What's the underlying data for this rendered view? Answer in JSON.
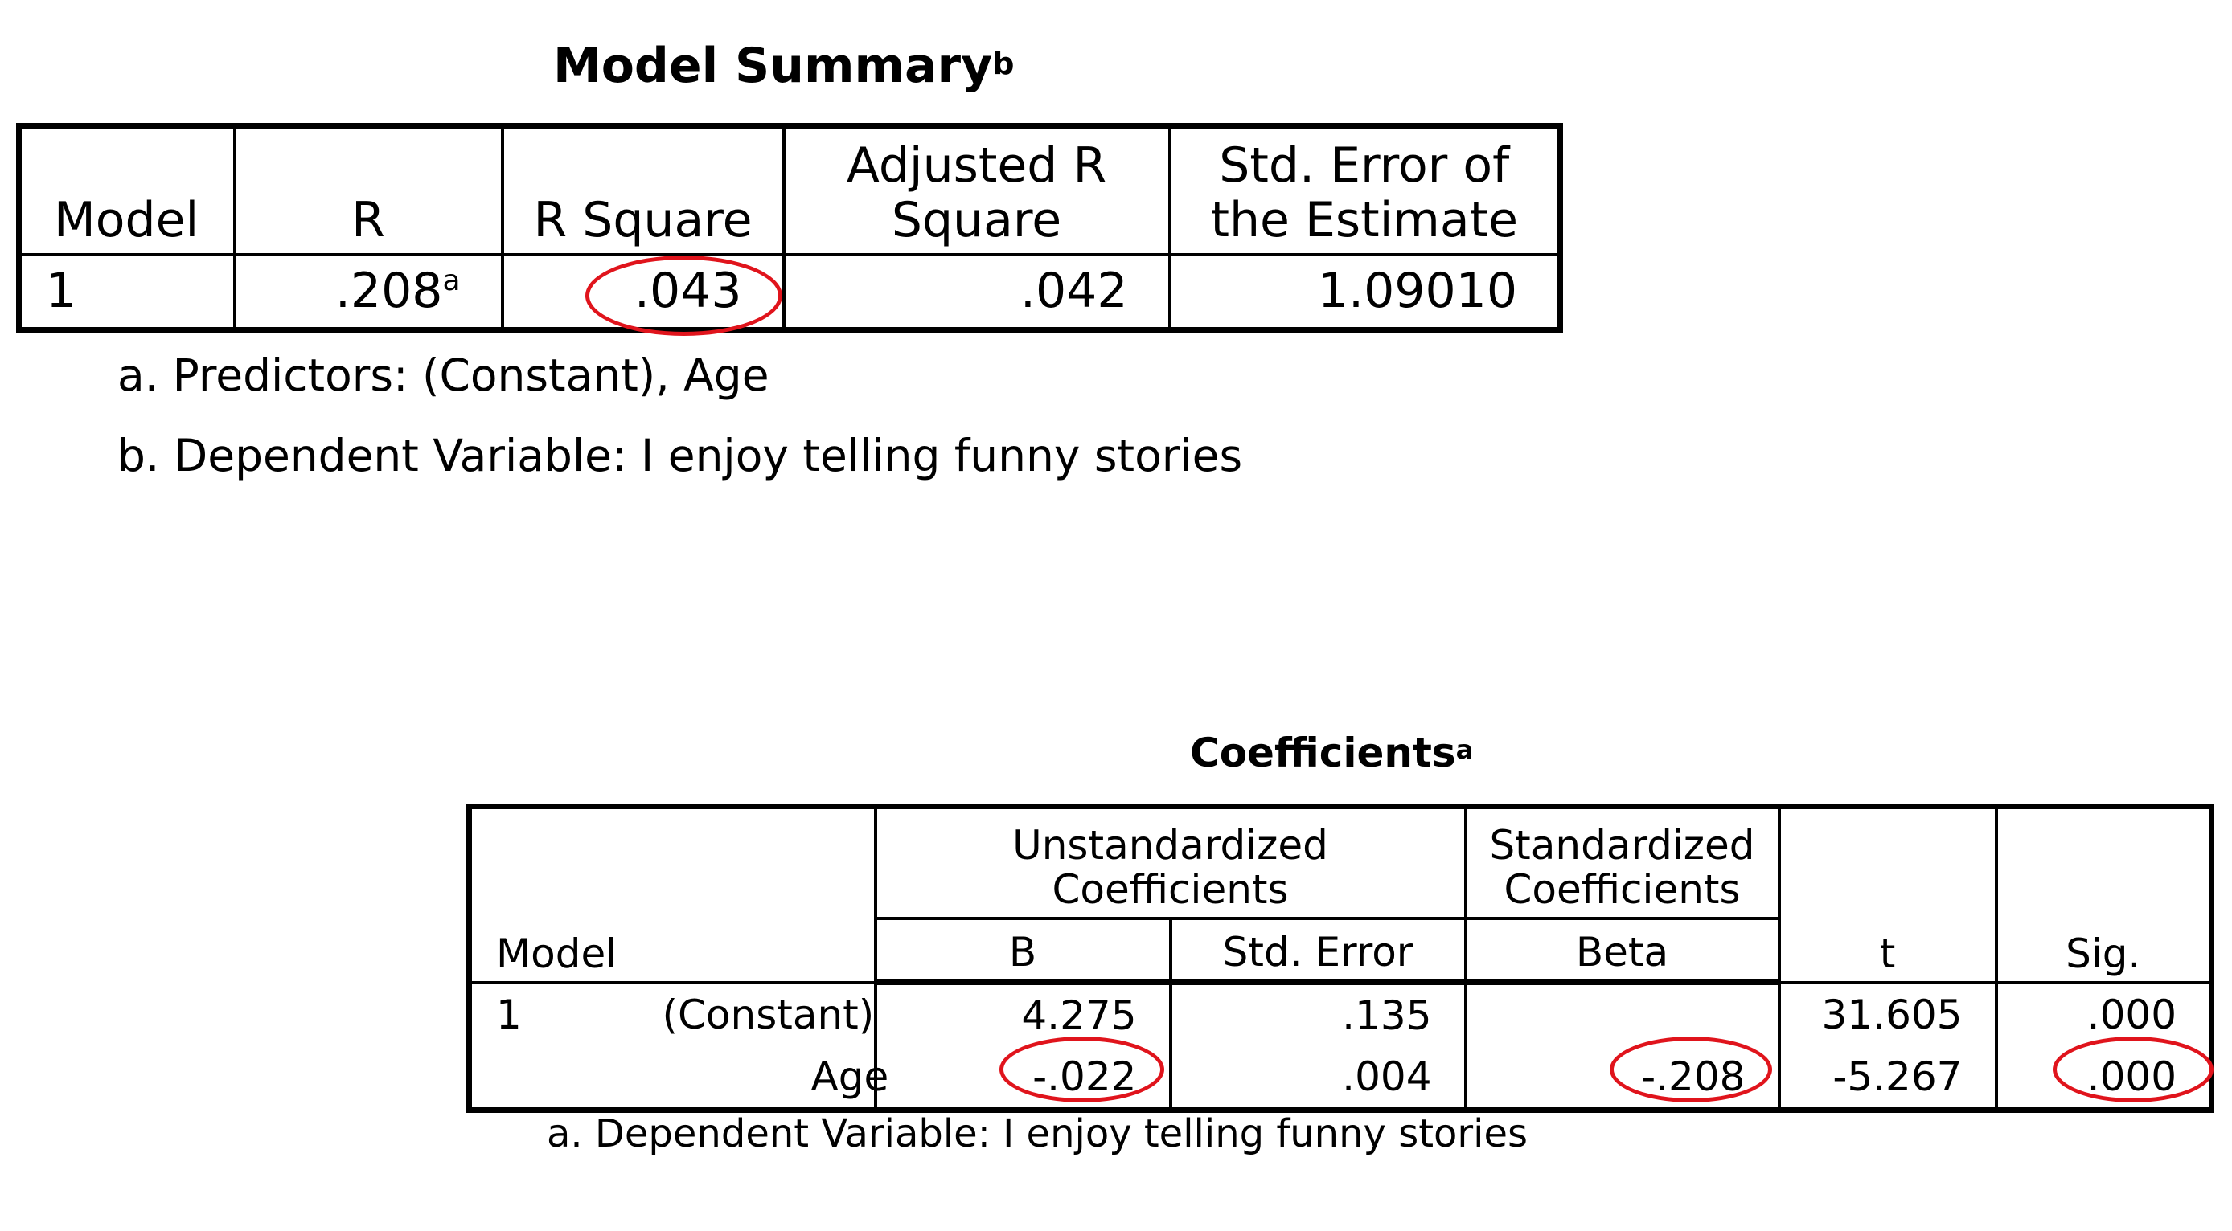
{
  "model_summary": {
    "title": "Model Summary",
    "title_sup": "b",
    "headers": {
      "model": "Model",
      "r": "R",
      "r_square": "R Square",
      "adj_r_square": "Adjusted R Square",
      "std_error": "Std. Error of the Estimate"
    },
    "row": {
      "model": "1",
      "r": ".208",
      "r_sup": "a",
      "r_square": ".043",
      "adj_r_square": ".042",
      "std_error": "1.09010"
    },
    "footnotes": [
      "a. Predictors: (Constant), Age",
      "b. Dependent Variable: I enjoy telling funny stories"
    ]
  },
  "coefficients": {
    "title": "Coefficients",
    "title_sup": "a",
    "headers": {
      "model": "Model",
      "unstandardized": "Unstandardized Coefficients",
      "standardized": "Standardized Coefficients",
      "b": "B",
      "std_error": "Std. Error",
      "beta": "Beta",
      "t": "t",
      "sig": "Sig."
    },
    "rows": [
      {
        "model": "1",
        "label": "(Constant)",
        "b": "4.275",
        "std_error": ".135",
        "beta": "",
        "t": "31.605",
        "sig": ".000"
      },
      {
        "model": "",
        "label": "Age",
        "b": "-.022",
        "std_error": ".004",
        "beta": "-.208",
        "t": "-5.267",
        "sig": ".000"
      }
    ],
    "footnote": "a. Dependent Variable: I enjoy telling funny stories"
  },
  "annotation_color": "#e0141c"
}
